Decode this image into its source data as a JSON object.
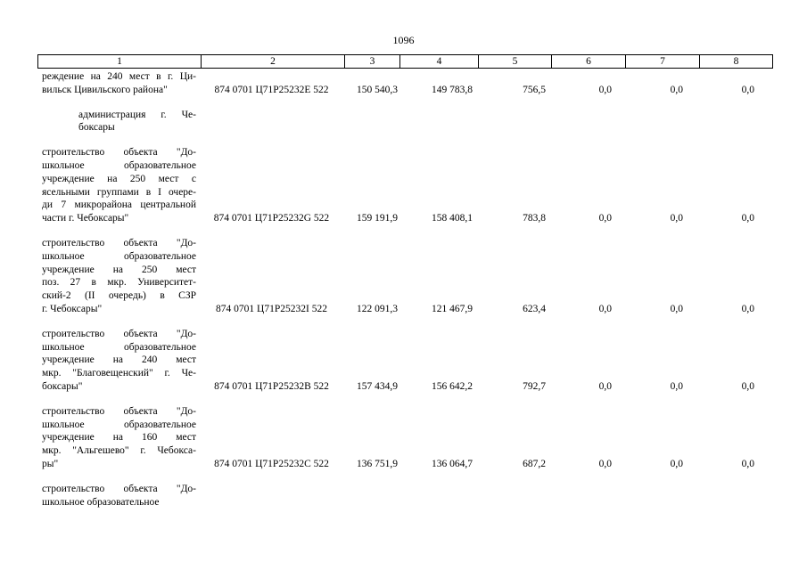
{
  "page_number": "1096",
  "table": {
    "header": [
      "1",
      "2",
      "3",
      "4",
      "5",
      "6",
      "7",
      "8"
    ],
    "rows": [
      {
        "description": [
          "реждение на 240 мест в г. Ци-",
          "вильск Цивильского района\""
        ],
        "cells": [
          "874 0701 Ц71Р25232Е 522",
          "150 540,3",
          "149 783,8",
          "756,5",
          "0,0",
          "0,0",
          "0,0"
        ]
      },
      {
        "description": [
          "администрация г. Че-",
          "боксары"
        ]
      },
      {
        "description": [
          "строительство объекта \"До-",
          "школьное образовательное",
          "учреждение на 250 мест с",
          "ясельными группами в I очере-",
          "ди 7 микрорайона центральной",
          "части г. Чебоксары\""
        ],
        "cells": [
          "874 0701 Ц71Р25232G 522",
          "159 191,9",
          "158 408,1",
          "783,8",
          "0,0",
          "0,0",
          "0,0"
        ]
      },
      {
        "description": [
          "строительство объекта \"До-",
          "школьное образовательное",
          "учреждение на 250 мест",
          "поз. 27 в мкр. Университет-",
          "ский-2 (II очередь) в СЗР",
          "г. Чебоксары\""
        ],
        "cells": [
          "874 0701 Ц71Р25232I 522",
          "122 091,3",
          "121 467,9",
          "623,4",
          "0,0",
          "0,0",
          "0,0"
        ]
      },
      {
        "description": [
          "строительство объекта \"До-",
          "школьное образовательное",
          "учреждение на 240 мест",
          "мкр. \"Благовещенский\" г. Че-",
          "боксары\""
        ],
        "cells": [
          "874 0701 Ц71Р25232В 522",
          "157 434,9",
          "156 642,2",
          "792,7",
          "0,0",
          "0,0",
          "0,0"
        ]
      },
      {
        "description": [
          "строительство объекта \"До-",
          "школьное образовательное",
          "учреждение на 160 мест",
          "мкр. \"Альгешево\" г. Чебокса-",
          "ры\""
        ],
        "cells": [
          "874 0701 Ц71Р25232С 522",
          "136 751,9",
          "136 064,7",
          "687,2",
          "0,0",
          "0,0",
          "0,0"
        ]
      },
      {
        "description": [
          "строительство объекта \"До-",
          "школьное образовательное"
        ]
      }
    ]
  }
}
